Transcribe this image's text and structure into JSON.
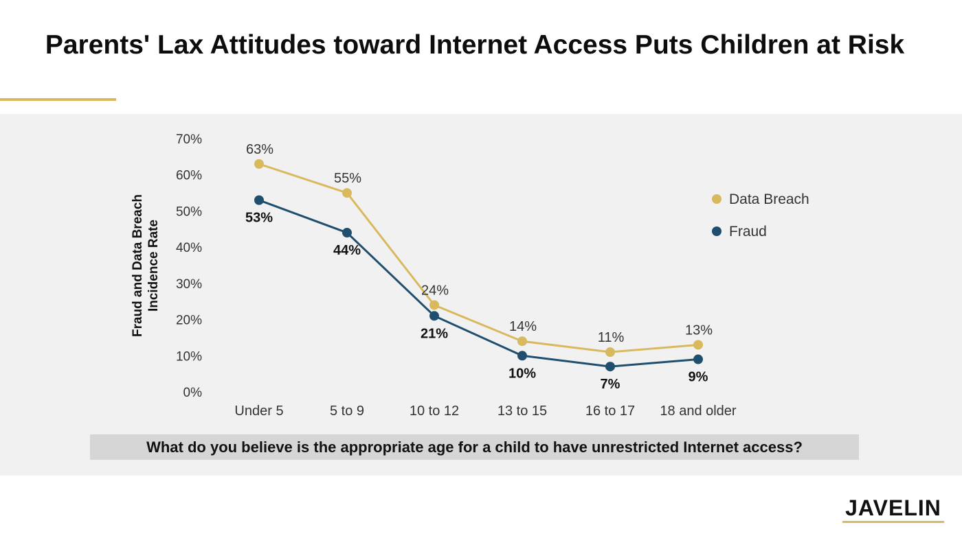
{
  "title": "Parents' Lax Attitudes toward Internet Access Puts Children at Risk",
  "question": "What do you believe is the appropriate age for a child to have unrestricted Internet access?",
  "logo": "JAVELIN",
  "colors": {
    "data_breach": "#d9b95e",
    "fraud": "#1f4e6e",
    "accent": "#d9b95e"
  },
  "chart_data": {
    "type": "line",
    "title": "",
    "xlabel": "",
    "ylabel": "Fraud and Data Breach Incidence Rate",
    "ylim": [
      0,
      70
    ],
    "yticks": [
      "0%",
      "10%",
      "20%",
      "30%",
      "40%",
      "50%",
      "60%",
      "70%"
    ],
    "categories": [
      "Under 5",
      "5 to 9",
      "10 to 12",
      "13 to 15",
      "16 to 17",
      "18 and older"
    ],
    "series": [
      {
        "name": "Data Breach",
        "values": [
          63,
          55,
          24,
          14,
          11,
          13
        ],
        "labels": [
          "63%",
          "55%",
          "24%",
          "14%",
          "11%",
          "13%"
        ]
      },
      {
        "name": "Fraud",
        "values": [
          53,
          44,
          21,
          10,
          7,
          9
        ],
        "labels": [
          "53%",
          "44%",
          "21%",
          "10%",
          "7%",
          "9%"
        ]
      }
    ],
    "grid": false,
    "legend": "right"
  }
}
